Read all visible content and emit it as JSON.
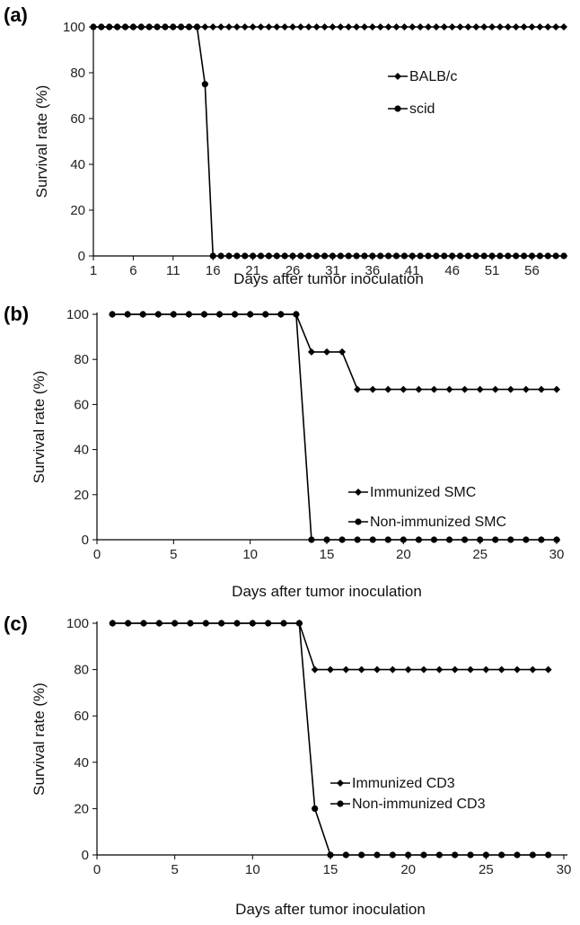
{
  "chart_data": [
    {
      "panel_label": "(a)",
      "type": "line",
      "xlabel": "Days after tumor inoculation",
      "ylabel": "Survival rate (%)",
      "xlim": [
        1,
        60
      ],
      "ylim": [
        0,
        100
      ],
      "xticks": [
        1,
        6,
        11,
        16,
        21,
        26,
        31,
        36,
        41,
        46,
        51,
        56
      ],
      "yticks": [
        0,
        20,
        40,
        60,
        80,
        100
      ],
      "legend_position": "center-right",
      "series": [
        {
          "name": "BALB/c",
          "marker": "diamond",
          "x": [
            1,
            2,
            3,
            4,
            5,
            6,
            7,
            8,
            9,
            10,
            11,
            12,
            13,
            14,
            15,
            16,
            17,
            18,
            19,
            20,
            21,
            22,
            23,
            24,
            25,
            26,
            27,
            28,
            29,
            30,
            31,
            32,
            33,
            34,
            35,
            36,
            37,
            38,
            39,
            40,
            41,
            42,
            43,
            44,
            45,
            46,
            47,
            48,
            49,
            50,
            51,
            52,
            53,
            54,
            55,
            56,
            57,
            58,
            59,
            60
          ],
          "y": [
            100,
            100,
            100,
            100,
            100,
            100,
            100,
            100,
            100,
            100,
            100,
            100,
            100,
            100,
            100,
            100,
            100,
            100,
            100,
            100,
            100,
            100,
            100,
            100,
            100,
            100,
            100,
            100,
            100,
            100,
            100,
            100,
            100,
            100,
            100,
            100,
            100,
            100,
            100,
            100,
            100,
            100,
            100,
            100,
            100,
            100,
            100,
            100,
            100,
            100,
            100,
            100,
            100,
            100,
            100,
            100,
            100,
            100,
            100,
            100
          ]
        },
        {
          "name": "scid",
          "marker": "circle",
          "x": [
            1,
            2,
            3,
            4,
            5,
            6,
            7,
            8,
            9,
            10,
            11,
            12,
            13,
            14,
            15,
            16,
            17,
            18,
            19,
            20,
            21,
            22,
            23,
            24,
            25,
            26,
            27,
            28,
            29,
            30,
            31,
            32,
            33,
            34,
            35,
            36,
            37,
            38,
            39,
            40,
            41,
            42,
            43,
            44,
            45,
            46,
            47,
            48,
            49,
            50,
            51,
            52,
            53,
            54,
            55,
            56,
            57,
            58,
            59,
            60
          ],
          "y": [
            100,
            100,
            100,
            100,
            100,
            100,
            100,
            100,
            100,
            100,
            100,
            100,
            100,
            100,
            75,
            0,
            0,
            0,
            0,
            0,
            0,
            0,
            0,
            0,
            0,
            0,
            0,
            0,
            0,
            0,
            0,
            0,
            0,
            0,
            0,
            0,
            0,
            0,
            0,
            0,
            0,
            0,
            0,
            0,
            0,
            0,
            0,
            0,
            0,
            0,
            0,
            0,
            0,
            0,
            0,
            0,
            0,
            0,
            0,
            0
          ]
        }
      ]
    },
    {
      "panel_label": "(b)",
      "type": "line",
      "xlabel": "Days after tumor inoculation",
      "ylabel": "Survival rate (%)",
      "xlim": [
        0,
        30
      ],
      "ylim": [
        0,
        100
      ],
      "xticks": [
        0,
        5,
        10,
        15,
        20,
        25,
        30
      ],
      "yticks": [
        0,
        20,
        40,
        60,
        80,
        100
      ],
      "legend_position": "lower-right",
      "series": [
        {
          "name": "Immunized SMC",
          "marker": "diamond",
          "x": [
            1,
            2,
            3,
            4,
            5,
            6,
            7,
            8,
            9,
            10,
            11,
            12,
            13,
            14,
            15,
            16,
            17,
            18,
            19,
            20,
            21,
            22,
            23,
            24,
            25,
            26,
            27,
            28,
            29,
            30
          ],
          "y": [
            100,
            100,
            100,
            100,
            100,
            100,
            100,
            100,
            100,
            100,
            100,
            100,
            100,
            83.3,
            83.3,
            83.3,
            66.7,
            66.7,
            66.7,
            66.7,
            66.7,
            66.7,
            66.7,
            66.7,
            66.7,
            66.7,
            66.7,
            66.7,
            66.7,
            66.7
          ]
        },
        {
          "name": "Non-immunized SMC",
          "marker": "circle",
          "x": [
            1,
            2,
            3,
            4,
            5,
            6,
            7,
            8,
            9,
            10,
            11,
            12,
            13,
            14,
            15,
            16,
            17,
            18,
            19,
            20,
            21,
            22,
            23,
            24,
            25,
            26,
            27,
            28,
            29,
            30
          ],
          "y": [
            100,
            100,
            100,
            100,
            100,
            100,
            100,
            100,
            100,
            100,
            100,
            100,
            100,
            0,
            0,
            0,
            0,
            0,
            0,
            0,
            0,
            0,
            0,
            0,
            0,
            0,
            0,
            0,
            0,
            0
          ]
        }
      ]
    },
    {
      "panel_label": "(c)",
      "type": "line",
      "xlabel": "Days after tumor inoculation",
      "ylabel": "Survival rate (%)",
      "xlim": [
        0,
        30
      ],
      "ylim": [
        0,
        100
      ],
      "xticks": [
        0,
        5,
        10,
        15,
        20,
        25,
        30
      ],
      "yticks": [
        0,
        20,
        40,
        60,
        80,
        100
      ],
      "legend_position": "center-right",
      "series": [
        {
          "name": "Immunized CD3",
          "marker": "diamond",
          "x": [
            1,
            2,
            3,
            4,
            5,
            6,
            7,
            8,
            9,
            10,
            11,
            12,
            13,
            14,
            15,
            16,
            17,
            18,
            19,
            20,
            21,
            22,
            23,
            24,
            25,
            26,
            27,
            28,
            29
          ],
          "y": [
            100,
            100,
            100,
            100,
            100,
            100,
            100,
            100,
            100,
            100,
            100,
            100,
            100,
            80,
            80,
            80,
            80,
            80,
            80,
            80,
            80,
            80,
            80,
            80,
            80,
            80,
            80,
            80,
            80
          ]
        },
        {
          "name": "Non-immunized CD3",
          "marker": "circle",
          "x": [
            1,
            2,
            3,
            4,
            5,
            6,
            7,
            8,
            9,
            10,
            11,
            12,
            13,
            14,
            15,
            16,
            17,
            18,
            19,
            20,
            21,
            22,
            23,
            24,
            25,
            26,
            27,
            28,
            29
          ],
          "y": [
            100,
            100,
            100,
            100,
            100,
            100,
            100,
            100,
            100,
            100,
            100,
            100,
            100,
            20,
            0,
            0,
            0,
            0,
            0,
            0,
            0,
            0,
            0,
            0,
            0,
            0,
            0,
            0,
            0
          ]
        }
      ]
    }
  ]
}
